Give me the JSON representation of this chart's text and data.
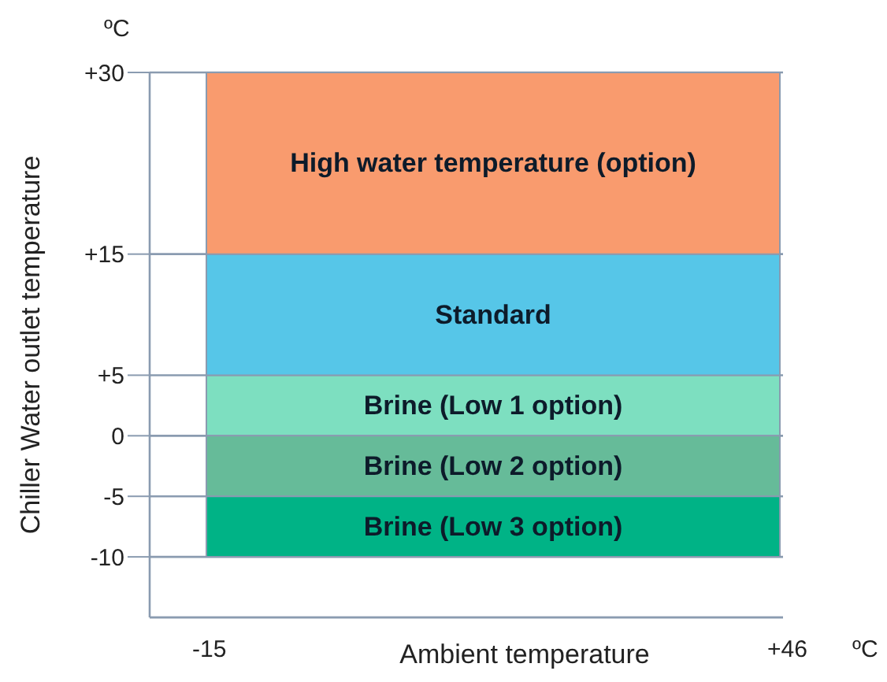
{
  "chart_data": {
    "type": "bar",
    "stacked": true,
    "categories": [
      null
    ],
    "xlabel": "Ambient temperature",
    "ylabel": "Chiller Water outlet temperature",
    "series": [
      {
        "name": "Brine (Low 1 option)",
        "color": "#7ddfc0",
        "values": [
          5
        ]
      },
      {
        "name": "Standard",
        "color": "#56c6e8",
        "values": [
          10
        ]
      },
      {
        "name": "High water temperature (option)",
        "color": "#f99b6e",
        "values": [
          15
        ]
      },
      {
        "name": "Brine (Low 2 option)",
        "color": "#66bb99",
        "values": [
          -5
        ]
      },
      {
        "name": "Brine (Low 3 option)",
        "color": "#00b386",
        "values": [
          -5
        ]
      }
    ],
    "ylim": [
      -15,
      30
    ],
    "yticks": [
      -10,
      -5,
      0,
      {
        "value": 5,
        "label": "+5"
      },
      {
        "value": 15,
        "label": "+15"
      },
      {
        "value": 30,
        "label": "+30"
      }
    ],
    "grid": "y",
    "legend": false,
    "annotations": [
      "ºC",
      "-15",
      "+46",
      "ºC"
    ]
  }
}
